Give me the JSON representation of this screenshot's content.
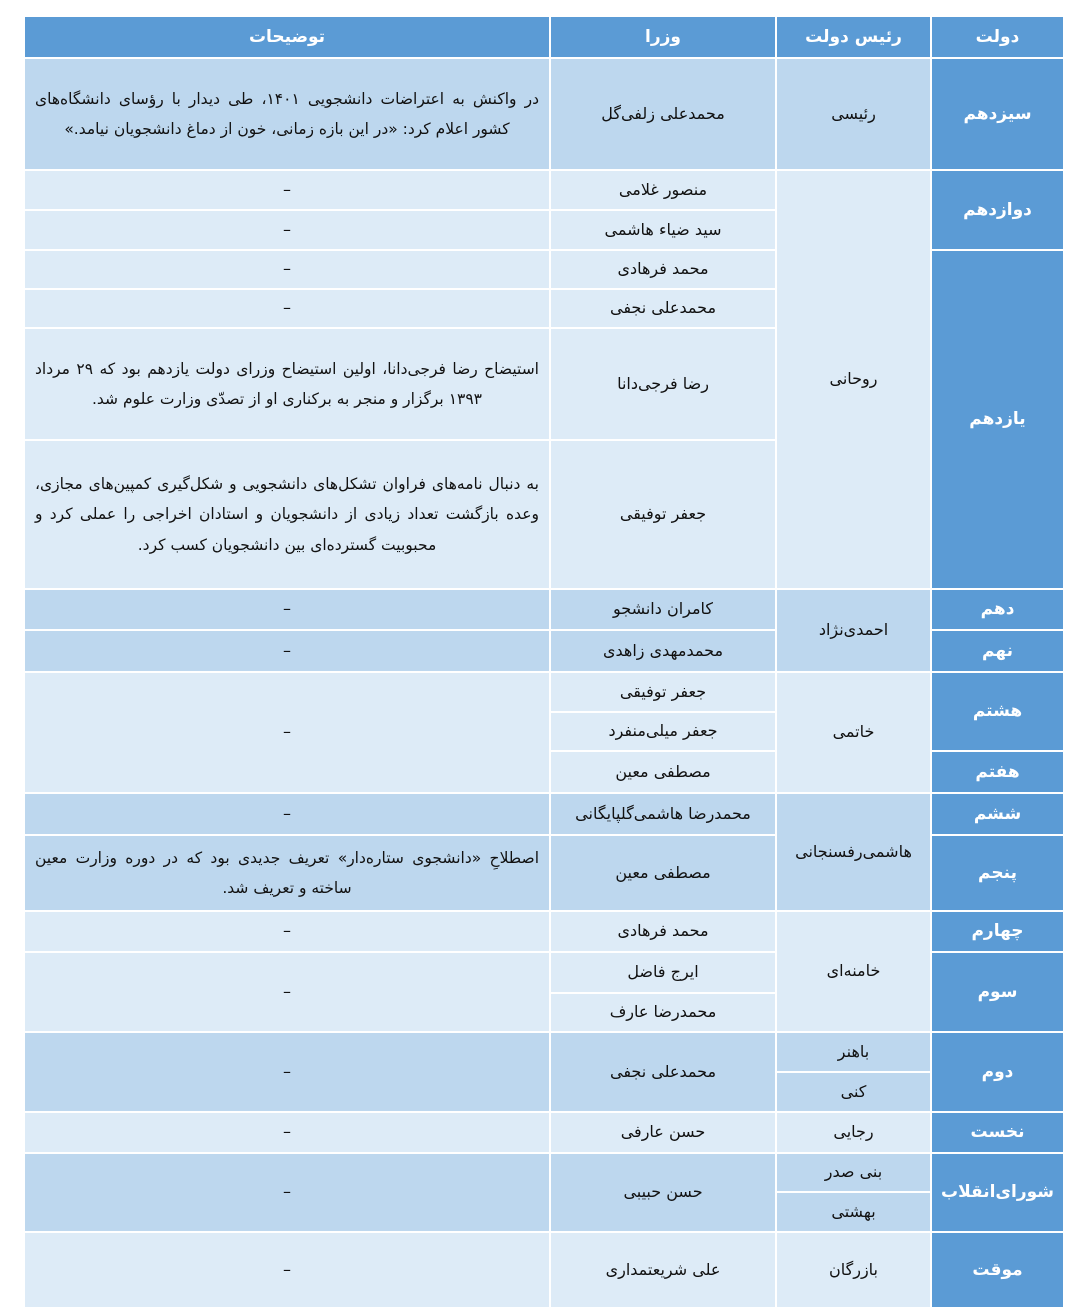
{
  "header": {
    "government": "دولت",
    "president": "رئیس دولت",
    "ministers": "وزرا",
    "notes": "توضیحات"
  },
  "colors": {
    "header": "#5b9bd5",
    "row_dark": "#bdd7ee",
    "row_light": "#ddebf7"
  },
  "governments": [
    "سیزدهم",
    "دوازدهم",
    "یازدهم",
    "دهم",
    "نهم",
    "هشتم",
    "هفتم",
    "ششم",
    "پنجم",
    "چهارم",
    "سوم",
    "دوم",
    "نخست",
    "شورای‌انقلاب",
    "موقت"
  ],
  "presidents": [
    "رئیسی",
    "روحانی",
    "احمدی‌نژاد",
    "خاتمی",
    "هاشمی‌رفسنجانی",
    "خامنه‌ای",
    "باهنر",
    "کنی",
    "رجایی",
    "بنی صدر",
    "بهشتی",
    "بازرگان"
  ],
  "ministers": [
    "محمدعلی زلفی‌گل",
    "منصور غلامی",
    "سید ضیاء هاشمی",
    "محمد فرهادی",
    "محمدعلی نجفی",
    "رضا فرجی‌دانا",
    "جعفر توفیقی",
    "کامران دانشجو",
    "محمدمهدی زاهدی",
    "جعفر توفیقی",
    "جعفر میلی‌منفرد",
    "مصطفی معین",
    "محمدرضا هاشمی‌گلپایگانی",
    "مصطفی معین",
    "محمد فرهادی",
    "ایرج فاضل",
    "محمدرضا عارف",
    "محمدعلی نجفی",
    "حسن عارفی",
    "حسن حبیبی",
    "علی شریعتمداری"
  ],
  "notes": {
    "zolfigol": "در واکنش به اعتراضات دانشجویی ۱۴۰۱، طی دیدار با رؤسای دانشگاه‌های کشور اعلام کرد: «در این بازه زمانی، خون از دماغ دانشجویان نیامد.»",
    "farjidana": "استیضاح رضا فرجی‌دانا، اولین استیضاح وزرای دولت یازدهم بود که ۲۹ مرداد ۱۳۹۳ برگزار و منجر به برکناری او از تصدّی وزارت علوم شد.",
    "tofighi": "به دنبال نامه‌های فراوان تشکل‌های دانشجویی و شکل‌گیری کمپین‌های مجازی، وعده بازگشت تعداد زیادی از دانشجویان و استادان اخراجی را عملی کرد و محبوبیت گسترده‌ای بین دانشجویان کسب کرد.",
    "moein": "اصطلاحِ «دانشجوی ستاره‌دار» تعریف جدیدی بود که در دوره وزارت معین ساخته و تعریف شد.",
    "none": "–"
  }
}
